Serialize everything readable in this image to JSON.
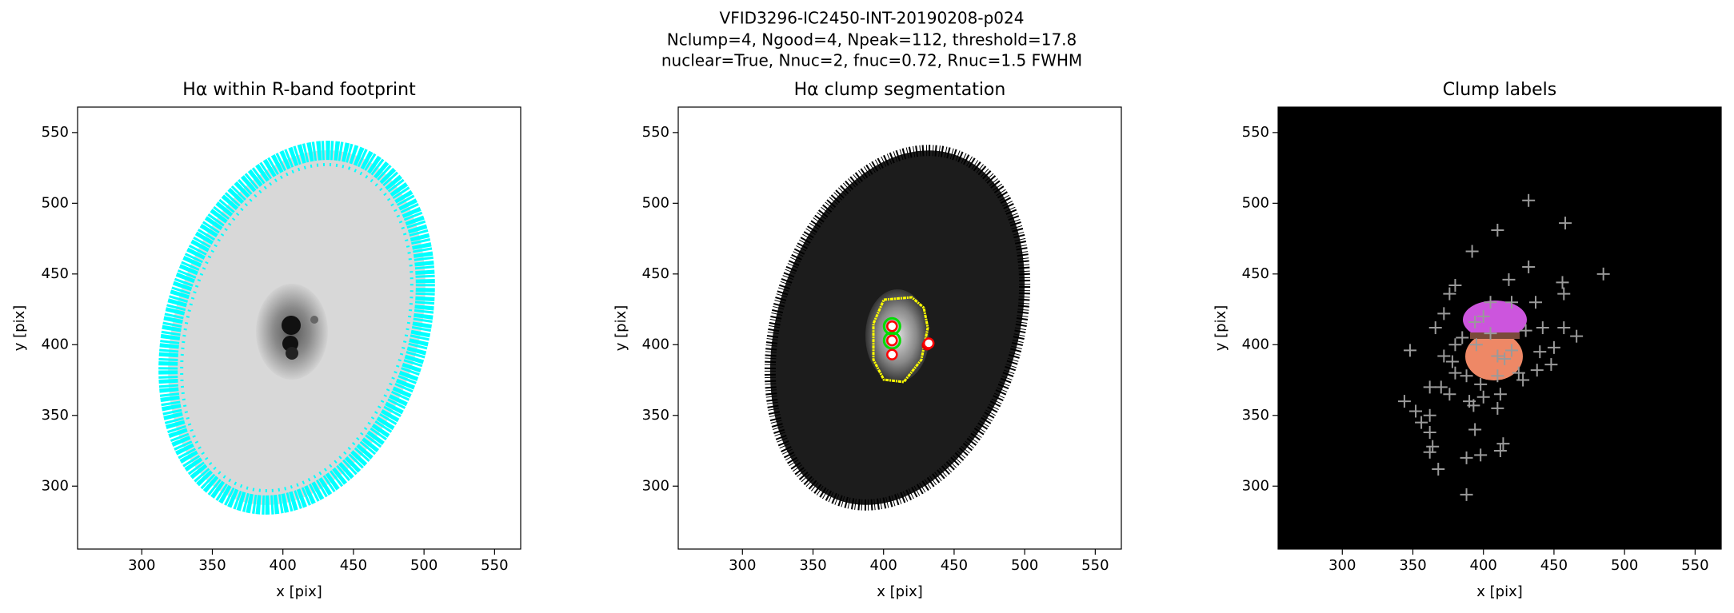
{
  "suptitle": [
    "VFID3296-IC2450-INT-20190208-p024",
    "Nclump=4, Ngood=4, Npeak=112, threshold=17.8",
    "nuclear=True, Nnuc=2, fnuc=0.72, Rnuc=1.5 FWHM"
  ],
  "chart_data": [
    {
      "type": "image",
      "title": "Hα within R-band footprint",
      "xlabel": "x [pix]",
      "ylabel": "y [pix]",
      "xlim": [
        254.5,
        568.5
      ],
      "ylim": [
        255.5,
        568
      ],
      "xticks": [
        300,
        350,
        400,
        450,
        500,
        550
      ],
      "yticks": [
        300,
        350,
        400,
        450,
        500,
        550
      ]
    },
    {
      "type": "image",
      "title": "Hα clump segmentation",
      "xlabel": "x [pix]",
      "ylabel": "y [pix]",
      "xlim": [
        254.5,
        568.5
      ],
      "ylim": [
        255.5,
        568
      ],
      "xticks": [
        300,
        350,
        400,
        450,
        500,
        550
      ],
      "yticks": [
        300,
        350,
        400,
        450,
        500,
        550
      ],
      "markers": [
        {
          "marker": "o",
          "color": "#00dd00",
          "x": [
            406,
            406
          ],
          "y": [
            413,
            403
          ]
        },
        {
          "marker": "o",
          "color": "#ff0000",
          "x": [
            406,
            406,
            406,
            432
          ],
          "y": [
            413,
            403,
            393,
            401
          ]
        }
      ]
    },
    {
      "type": "image",
      "title": "Clump labels",
      "xlabel": "x [pix]",
      "ylabel": "y [pix]",
      "xlim": [
        254.5,
        568.5
      ],
      "ylim": [
        255.5,
        568
      ],
      "xticks": [
        300,
        350,
        400,
        450,
        500,
        550
      ],
      "yticks": [
        300,
        350,
        400,
        450,
        500,
        550
      ],
      "markers": [
        {
          "marker": "+",
          "color": "#9a9a9a",
          "x": [
            432,
            458,
            410,
            392,
            485,
            432,
            418,
            456,
            457,
            380,
            376,
            372,
            366,
            394,
            405,
            420,
            437,
            457,
            466,
            442,
            450,
            430,
            380,
            372,
            348,
            378,
            388,
            398,
            410,
            415,
            425,
            438,
            448,
            420,
            395,
            405,
            400,
            385,
            362,
            370,
            344,
            352,
            356,
            362,
            364,
            362,
            368,
            390,
            393,
            400,
            394,
            388,
            398,
            412,
            414,
            410,
            380,
            376,
            412,
            428,
            440,
            362,
            388,
            410
          ],
          "y": [
            502,
            486,
            481,
            466,
            450,
            455,
            446,
            444,
            436,
            442,
            436,
            422,
            412,
            416,
            430,
            430,
            430,
            412,
            406,
            412,
            398,
            410,
            400,
            392,
            396,
            388,
            378,
            372,
            378,
            390,
            380,
            382,
            386,
            396,
            400,
            408,
            420,
            405,
            370,
            370,
            360,
            353,
            345,
            338,
            328,
            324,
            312,
            360,
            357,
            363,
            340,
            320,
            322,
            325,
            330,
            355,
            380,
            365,
            365,
            375,
            395,
            350,
            294,
            392
          ]
        }
      ]
    }
  ]
}
